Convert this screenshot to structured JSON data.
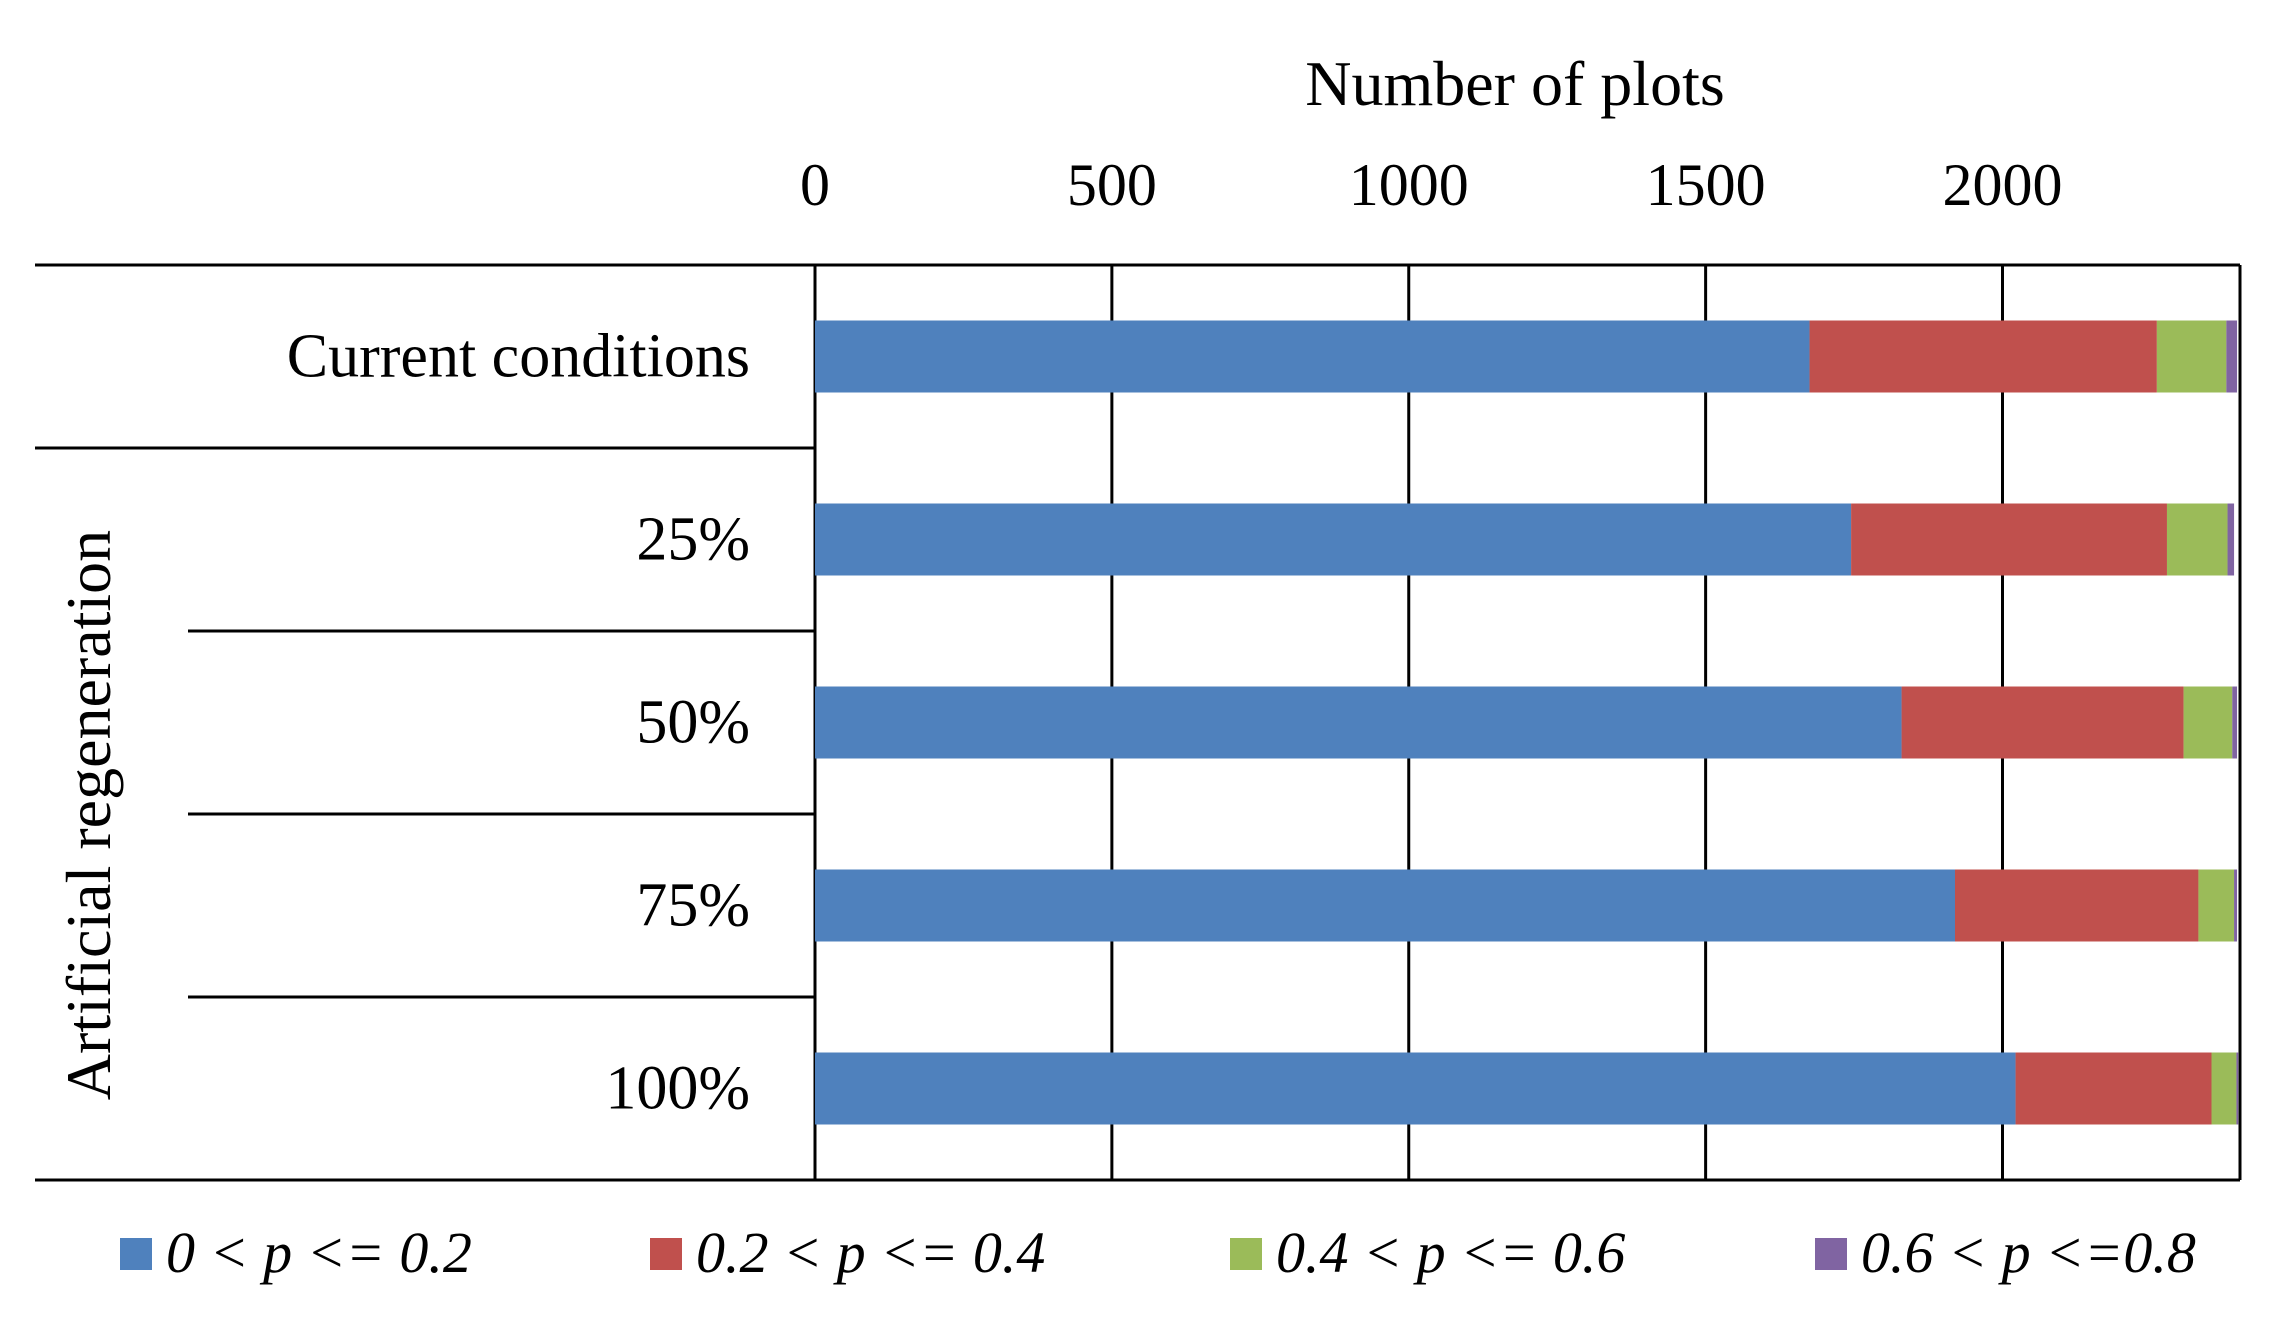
{
  "chart_data": {
    "type": "bar",
    "orientation": "horizontal",
    "stacked": true,
    "xlabel": "Number of plots",
    "xlim": [
      0,
      2400
    ],
    "x_ticks": [
      0,
      500,
      1000,
      1500,
      2000
    ],
    "grid": "vertical",
    "legend_placement": "bottom",
    "group_label": "Artificial regeneration",
    "categories": [
      "Current conditions",
      "25%",
      "50%",
      "75%",
      "100%"
    ],
    "series": [
      {
        "name": "0 < p <= 0.2",
        "color": "#4f81bd",
        "values": [
          1675,
          1745,
          1830,
          1920,
          2022
        ]
      },
      {
        "name": "0.2 < p <= 0.4",
        "color": "#c0504d",
        "values": [
          585,
          532,
          475,
          410,
          330
        ]
      },
      {
        "name": "0.4 < p <= 0.6",
        "color": "#9bbb59",
        "values": [
          117,
          102,
          82,
          60,
          42
        ]
      },
      {
        "name": "0.6 < p <=0.8",
        "color": "#8064a2",
        "values": [
          18,
          11,
          8,
          5,
          3
        ]
      }
    ]
  }
}
